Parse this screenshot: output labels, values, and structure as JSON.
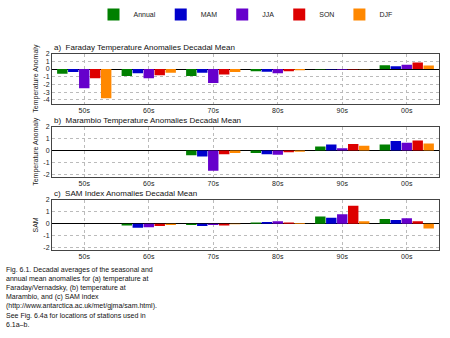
{
  "chart_data": [
    {
      "type": "bar",
      "title": "a)  Faraday Temperature Anomalies Decadal Mean",
      "ylabel": "Temperature Anomaly",
      "categories": [
        "50s",
        "60s",
        "70s",
        "80s",
        "90s",
        "00s"
      ],
      "series": [
        {
          "name": "Annual",
          "color": "#008000",
          "values": [
            -0.6,
            -0.9,
            -0.9,
            -0.3,
            -0.05,
            0.5
          ]
        },
        {
          "name": "MAM",
          "color": "#0000cc",
          "values": [
            -0.4,
            -0.55,
            -0.5,
            -0.35,
            -0.05,
            0.35
          ]
        },
        {
          "name": "JJA",
          "color": "#6600cc",
          "values": [
            -2.5,
            -1.2,
            -1.8,
            -0.55,
            -0.1,
            0.55
          ]
        },
        {
          "name": "SON",
          "color": "#dd0000",
          "values": [
            -1.2,
            -0.8,
            -0.7,
            -0.3,
            -0.05,
            0.85
          ]
        },
        {
          "name": "DJF",
          "color": "#ff8800",
          "values": [
            -3.8,
            -0.5,
            -0.4,
            -0.15,
            -0.02,
            0.45
          ]
        }
      ],
      "ylim": [
        -4.5,
        2.0
      ],
      "yticks": [
        -4,
        -3,
        -2,
        -1,
        0,
        1,
        2
      ],
      "grid": true,
      "legend": "top"
    },
    {
      "type": "bar",
      "title": "b)  Marambio Temperature Anomalies Decadal Mean",
      "ylabel": "Temperature Anomaly",
      "categories": [
        "50s",
        "60s",
        "70s",
        "80s",
        "90s",
        "00s"
      ],
      "series": [
        {
          "name": "Annual",
          "color": "#008000",
          "values": [
            0.0,
            0.0,
            -0.4,
            -0.2,
            0.35,
            0.5
          ]
        },
        {
          "name": "MAM",
          "color": "#0000cc",
          "values": [
            0.0,
            0.0,
            -0.5,
            -0.3,
            0.5,
            0.8
          ]
        },
        {
          "name": "JJA",
          "color": "#6600cc",
          "values": [
            0.0,
            0.0,
            -1.7,
            -0.35,
            0.2,
            0.65
          ]
        },
        {
          "name": "SON",
          "color": "#dd0000",
          "values": [
            0.0,
            0.0,
            -0.3,
            -0.15,
            0.55,
            0.85
          ]
        },
        {
          "name": "DJF",
          "color": "#ff8800",
          "values": [
            0.0,
            0.0,
            -0.2,
            -0.1,
            0.4,
            0.6
          ]
        }
      ],
      "ylim": [
        -2.2,
        2.0
      ],
      "yticks": [
        -2,
        -1,
        0,
        1,
        2
      ],
      "grid": true
    },
    {
      "type": "bar",
      "title": "c)  SAM Index Anomalies Decadal Mean",
      "ylabel": "SAM",
      "categories": [
        "50s",
        "60s",
        "70s",
        "80s",
        "90s",
        "00s"
      ],
      "series": [
        {
          "name": "Annual",
          "color": "#008000",
          "values": [
            0.0,
            -0.15,
            -0.1,
            0.1,
            0.6,
            0.4
          ]
        },
        {
          "name": "MAM",
          "color": "#0000cc",
          "values": [
            0.0,
            -0.35,
            -0.2,
            0.15,
            0.5,
            0.3
          ]
        },
        {
          "name": "JJA",
          "color": "#6600cc",
          "values": [
            0.0,
            -0.3,
            -0.1,
            0.2,
            0.8,
            0.45
          ]
        },
        {
          "name": "SON",
          "color": "#dd0000",
          "values": [
            0.0,
            -0.2,
            -0.15,
            0.1,
            1.5,
            0.2
          ]
        },
        {
          "name": "DJF",
          "color": "#ff8800",
          "values": [
            0.0,
            -0.1,
            -0.05,
            0.05,
            0.2,
            -0.4
          ]
        }
      ],
      "ylim": [
        -2.2,
        2.0
      ],
      "yticks": [
        -2,
        -1,
        0,
        1,
        2
      ],
      "grid": true,
      "annotations": [
        "Fig. 6.1. Decadal averages of the seasonal and\nannual mean anomalies for (a) temperature at\nFaraday/Vernadsky, (b) temperature at\nMarambio, and (c) SAM index\n(http://www.antarctica.ac.uk/met/gjma/sam.html).\nSee Fig. 6.4a for locations of stations used in\n6.1a–b."
      ]
    }
  ]
}
